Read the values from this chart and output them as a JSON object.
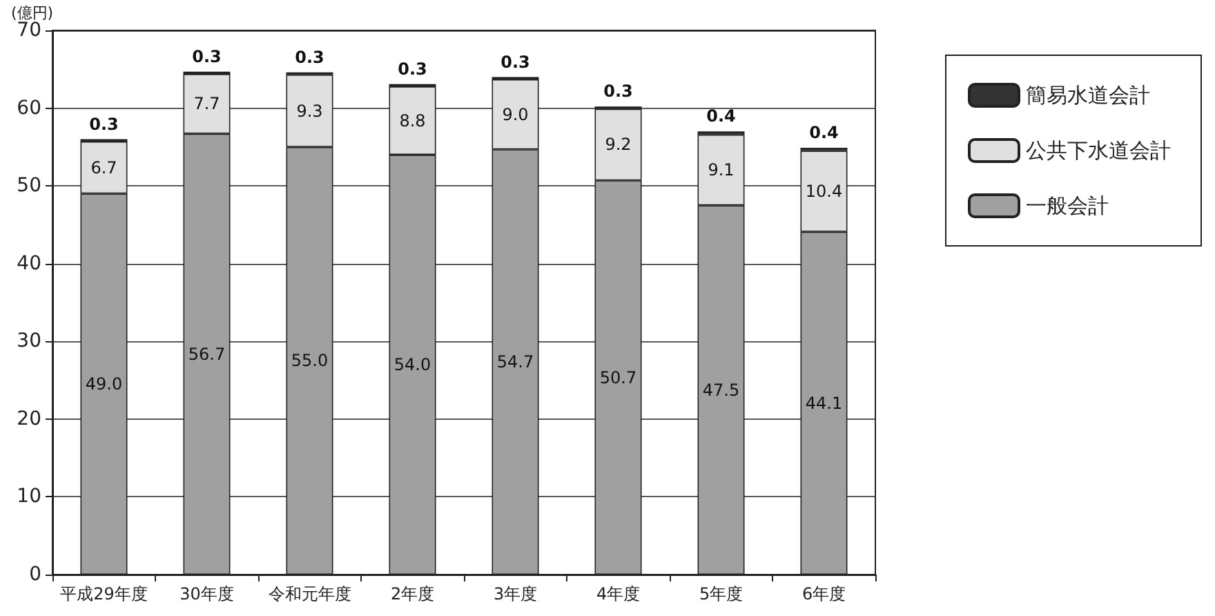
{
  "chart_data": {
    "type": "bar",
    "ylabel": "(億円)",
    "stacked": true,
    "grid": "y",
    "legend": "right",
    "categories": [
      "平成29年度",
      "30年度",
      "令和元年度",
      "2年度",
      "3年度",
      "4年度",
      "5年度",
      "6年度"
    ],
    "series": [
      {
        "name": "一般会計",
        "color": "#a0a0a0",
        "values": [
          49.0,
          56.7,
          55.0,
          54.0,
          54.7,
          50.7,
          47.5,
          44.1
        ],
        "value_labels": [
          "49.0",
          "56.7",
          "55.0",
          "54.0",
          "54.7",
          "50.7",
          "47.5",
          "44.1"
        ]
      },
      {
        "name": "公共下水道会計",
        "color": "#e0e0e0",
        "values": [
          6.7,
          7.7,
          9.3,
          8.8,
          9.0,
          9.2,
          9.1,
          10.4
        ],
        "value_labels": [
          "6.7",
          "7.7",
          "9.3",
          "8.8",
          "9.0",
          "9.2",
          "9.1",
          "10.4"
        ]
      },
      {
        "name": "簡易水道会計",
        "color": "#333333",
        "values": [
          0.3,
          0.3,
          0.3,
          0.3,
          0.3,
          0.3,
          0.4,
          0.4
        ],
        "value_labels": [
          "0.3",
          "0.3",
          "0.3",
          "0.3",
          "0.3",
          "0.3",
          "0.4",
          "0.4"
        ]
      }
    ],
    "ylim": [
      0,
      70
    ],
    "yticks": [
      0,
      10,
      20,
      30,
      40,
      50,
      60,
      70
    ]
  }
}
